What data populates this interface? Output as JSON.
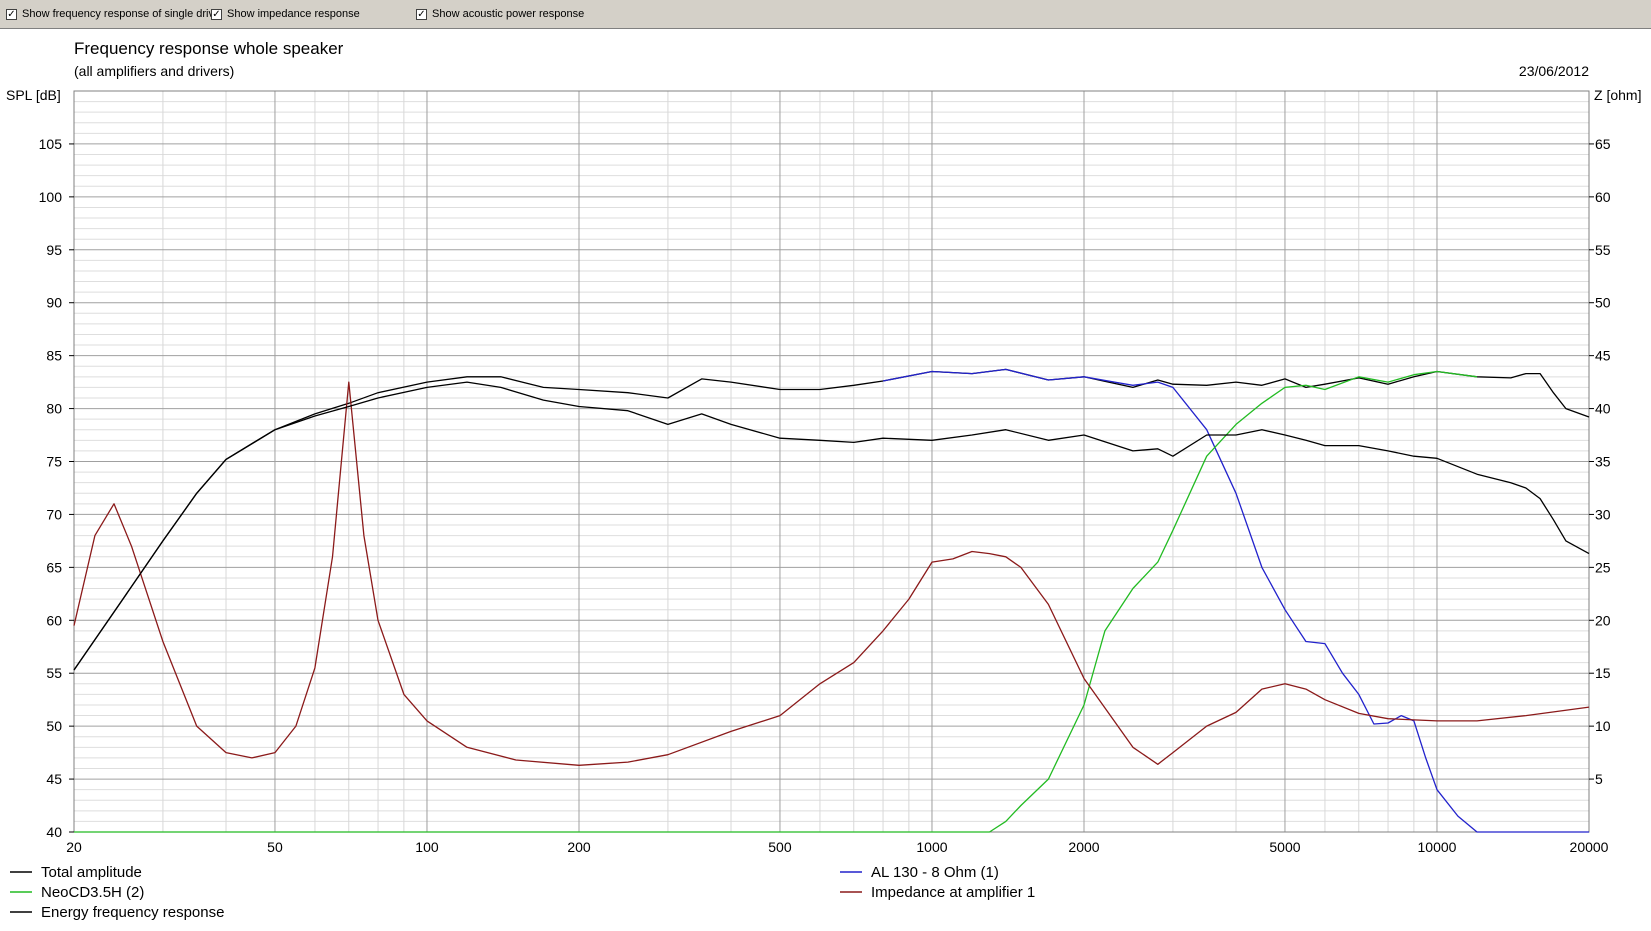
{
  "toolbar": {
    "options": [
      {
        "label": "Show frequency response of single drive",
        "checked": true
      },
      {
        "label": "Show impedance response",
        "checked": true
      },
      {
        "label": "Show acoustic power response",
        "checked": true
      }
    ],
    "check_glyph": "✓"
  },
  "chart_data": {
    "type": "line",
    "title": "Frequency response whole speaker",
    "subtitle": "(all amplifiers and drivers)",
    "date": "23/06/2012",
    "ylabel_left": "SPL [dB]",
    "ylabel_right": "Z [ohm]",
    "x_scale": "log",
    "xlim": [
      20,
      20000
    ],
    "ylim_left": [
      40,
      110
    ],
    "ylim_right": [
      0,
      70
    ],
    "x_ticks": [
      20,
      50,
      100,
      200,
      500,
      1000,
      2000,
      5000,
      10000,
      20000
    ],
    "x_tick_labels": [
      "20",
      "50",
      "100",
      "200",
      "500",
      "1000",
      "2000",
      "5000",
      "10000",
      "20000"
    ],
    "y_left_ticks": [
      "40",
      "45",
      "50",
      "55",
      "60",
      "65",
      "70",
      "75",
      "80",
      "85",
      "90",
      "95",
      "100",
      "105"
    ],
    "y_right_ticks": [
      "5",
      "10",
      "15",
      "20",
      "25",
      "30",
      "35",
      "40",
      "45",
      "50",
      "55",
      "60",
      "65"
    ],
    "grid": true,
    "legend_position": "bottom",
    "series": [
      {
        "name": "Total amplitude",
        "color": "#000000",
        "axis": "left",
        "x": [
          20,
          25,
          30,
          35,
          40,
          50,
          60,
          70,
          80,
          100,
          120,
          140,
          170,
          200,
          250,
          300,
          350,
          400,
          500,
          600,
          700,
          800,
          1000,
          1200,
          1400,
          1700,
          2000,
          2500,
          2800,
          3000,
          3500,
          4000,
          4500,
          5000,
          5500,
          6000,
          7000,
          8000,
          9000,
          10000,
          12000,
          14000,
          15000,
          16000,
          17000,
          18000,
          20000
        ],
        "y": [
          55.3,
          62,
          67.5,
          72,
          75.2,
          78,
          79.5,
          80.5,
          81.5,
          82.5,
          83,
          83,
          82,
          81.8,
          81.5,
          81,
          82.8,
          82.5,
          81.8,
          81.8,
          82.2,
          82.6,
          83.5,
          83.3,
          83.7,
          82.7,
          83,
          82,
          82.7,
          82.3,
          82.2,
          82.5,
          82.2,
          82.8,
          82,
          82.3,
          82.9,
          82.3,
          83,
          83.5,
          83,
          82.9,
          83.3,
          83.3,
          81.5,
          80,
          79.2
        ]
      },
      {
        "name": "AL 130 - 8 Ohm (1)",
        "color": "#2222cc",
        "axis": "left",
        "x": [
          800,
          1000,
          1200,
          1400,
          1700,
          2000,
          2500,
          2800,
          3000,
          3500,
          4000,
          4500,
          5000,
          5500,
          6000,
          6500,
          7000,
          7500,
          8000,
          8500,
          9000,
          9500,
          10000,
          11000,
          12000,
          20000
        ],
        "y": [
          82.6,
          83.5,
          83.3,
          83.7,
          82.7,
          83,
          82.2,
          82.5,
          82,
          78,
          72,
          65,
          61,
          58,
          57.8,
          55,
          53,
          50.2,
          50.3,
          51,
          50.5,
          47,
          44,
          41.5,
          40,
          40
        ]
      },
      {
        "name": "NeoCD3.5H (2)",
        "color": "#22bb22",
        "axis": "left",
        "x": [
          20,
          1300,
          1400,
          1500,
          1700,
          2000,
          2200,
          2500,
          2800,
          3000,
          3500,
          4000,
          4500,
          5000,
          5500,
          6000,
          7000,
          8000,
          9000,
          10000,
          12000
        ],
        "y": [
          40,
          40,
          41,
          42.5,
          45,
          52,
          59,
          63,
          65.5,
          68.5,
          75.5,
          78.5,
          80.5,
          82,
          82.2,
          81.8,
          83,
          82.5,
          83.2,
          83.5,
          83
        ]
      },
      {
        "name": "Impedance at amplifier 1",
        "color": "#8b1a1a",
        "axis": "right",
        "x": [
          20,
          22,
          24,
          26,
          30,
          35,
          40,
          45,
          50,
          55,
          60,
          65,
          70,
          75,
          80,
          90,
          100,
          120,
          150,
          200,
          250,
          300,
          400,
          500,
          600,
          700,
          800,
          900,
          1000,
          1100,
          1200,
          1300,
          1400,
          1500,
          1700,
          2000,
          2500,
          2800,
          3000,
          3500,
          4000,
          4500,
          5000,
          5500,
          6000,
          7000,
          8000,
          10000,
          12000,
          15000,
          20000
        ],
        "y": [
          19.5,
          28,
          31,
          27,
          18,
          10,
          7.5,
          7,
          7.5,
          10,
          15.5,
          26,
          42.5,
          28,
          20,
          13,
          10.5,
          8,
          6.8,
          6.3,
          6.6,
          7.3,
          9.5,
          11,
          14,
          16,
          19,
          22,
          25.5,
          25.8,
          26.5,
          26.3,
          26,
          25,
          21.5,
          14.5,
          8,
          6.4,
          7.5,
          10,
          11.3,
          13.5,
          14,
          13.5,
          12.5,
          11.2,
          10.7,
          10.5,
          10.5,
          11,
          11.8
        ]
      },
      {
        "name": "Energy frequency response",
        "color": "#000000",
        "axis": "left",
        "x": [
          20,
          25,
          30,
          35,
          40,
          50,
          60,
          70,
          80,
          100,
          120,
          140,
          170,
          200,
          250,
          300,
          350,
          400,
          500,
          600,
          700,
          800,
          1000,
          1200,
          1400,
          1700,
          2000,
          2500,
          2800,
          3000,
          3500,
          4000,
          4500,
          5000,
          5500,
          6000,
          7000,
          8000,
          9000,
          10000,
          12000,
          14000,
          15000,
          16000,
          17000,
          18000,
          20000
        ],
        "y": [
          55.3,
          62,
          67.5,
          72,
          75.2,
          78,
          79.3,
          80.2,
          81,
          82,
          82.5,
          82,
          80.8,
          80.2,
          79.8,
          78.5,
          79.5,
          78.5,
          77.2,
          77,
          76.8,
          77.2,
          77,
          77.5,
          78,
          77,
          77.5,
          76,
          76.2,
          75.5,
          77.5,
          77.5,
          78,
          77.5,
          77,
          76.5,
          76.5,
          76,
          75.5,
          75.3,
          73.8,
          73,
          72.5,
          71.5,
          69.5,
          67.5,
          66.3
        ]
      }
    ]
  }
}
